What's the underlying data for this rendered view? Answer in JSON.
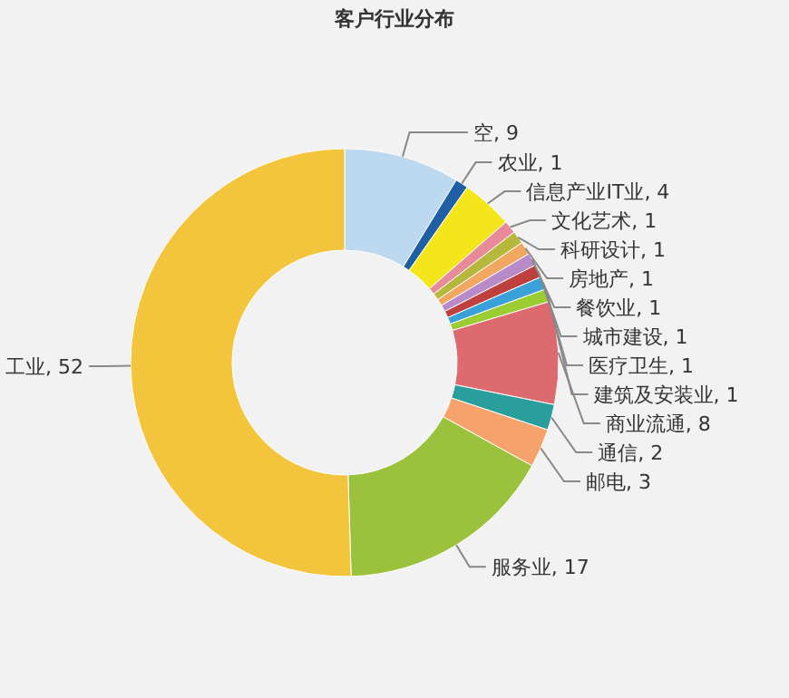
{
  "chart_data": {
    "type": "donut",
    "title": "客户行业分布",
    "categories": [
      "空",
      "农业",
      "信息产业IT业",
      "文化艺术",
      "科研设计",
      "房地产",
      "餐饮业",
      "城市建设",
      "医疗卫生",
      "建筑及安装业",
      "商业流通",
      "通信",
      "邮电",
      "服务业",
      "工业"
    ],
    "values": [
      9,
      1,
      4,
      1,
      1,
      1,
      1,
      1,
      1,
      1,
      8,
      2,
      3,
      17,
      52
    ],
    "colors": [
      "#bcd9f0",
      "#1f5fa6",
      "#f5e51b",
      "#e88a9a",
      "#b5b83c",
      "#f0a860",
      "#b88bc8",
      "#c0403e",
      "#3aa0d8",
      "#9acd32",
      "#dd6a6e",
      "#2a9d9d",
      "#f5a36a",
      "#9ac23c",
      "#f2c53d"
    ],
    "value_labels": [
      ", 9",
      ", 1",
      ", 4",
      ", 1",
      ", 1",
      ", 1",
      ", 1",
      ", 1",
      ", 1",
      ", 1",
      ", 8",
      ", 2",
      ", 3",
      ", 17",
      ", 52"
    ]
  }
}
